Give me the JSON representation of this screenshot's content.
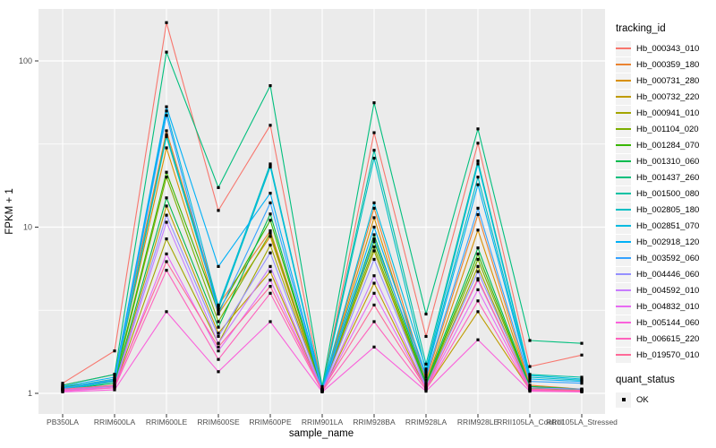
{
  "chart_data": {
    "type": "line",
    "title": "",
    "x_axis": {
      "label": "sample_name",
      "categories": [
        "PB350LA",
        "RRIM600LA",
        "RRIM600LE",
        "RRIM600SE",
        "RRIM600PE",
        "RRIM901LA",
        "RRIM928BA",
        "RRIM928LA",
        "RRIM928LE",
        "RRII105LA_Control",
        "RRII105LA_Stressed"
      ]
    },
    "y_axis": {
      "label": "FPKM + 1",
      "scale": "log10",
      "ticks": [
        "1",
        "10",
        "100"
      ],
      "tick_values": [
        1,
        10,
        100
      ],
      "minor_tick_values": [
        3.1623,
        31.623
      ],
      "range": [
        0.75,
        205
      ]
    },
    "grid": true,
    "panel_background": "#ebebeb",
    "gridline_color": "#ffffff",
    "point_color": "#000000",
    "legend": {
      "title": "tracking_id",
      "position": "right",
      "key_background": "#f2f2f2"
    },
    "quant_status": {
      "title": "quant_status",
      "items": [
        {
          "label": "OK",
          "color": "#000000",
          "shape": "square"
        }
      ]
    },
    "series": [
      {
        "name": "Hb_000343_010",
        "color": "#F8766D",
        "values": [
          1.15,
          1.8,
          170,
          12.6,
          41,
          1.06,
          37,
          2.2,
          32,
          1.45,
          1.7
        ]
      },
      {
        "name": "Hb_000359_180",
        "color": "#EA8331",
        "values": [
          1.12,
          1.3,
          38,
          3.4,
          9.5,
          1.05,
          13.0,
          1.2,
          11.9,
          1.12,
          1.06
        ]
      },
      {
        "name": "Hb_000731_280",
        "color": "#D89000",
        "values": [
          1.08,
          1.22,
          30,
          3.0,
          8.8,
          1.04,
          11.4,
          1.15,
          9.6,
          1.1,
          1.05
        ]
      },
      {
        "name": "Hb_000732_220",
        "color": "#C09B00",
        "values": [
          1.04,
          1.12,
          13.4,
          2.3,
          5.4,
          1.03,
          4.6,
          1.06,
          3.1,
          1.05,
          1.03
        ]
      },
      {
        "name": "Hb_000941_010",
        "color": "#A3A500",
        "values": [
          1.06,
          1.1,
          8.5,
          2.0,
          7.8,
          1.03,
          7.2,
          1.08,
          5.8,
          1.05,
          1.03
        ]
      },
      {
        "name": "Hb_001104_020",
        "color": "#7CAE00",
        "values": [
          1.1,
          1.18,
          20.0,
          2.7,
          9.2,
          1.05,
          7.6,
          1.1,
          6.4,
          1.07,
          1.04
        ]
      },
      {
        "name": "Hb_001284_070",
        "color": "#39B600",
        "values": [
          1.08,
          1.2,
          21.4,
          3.1,
          11.0,
          1.05,
          8.2,
          1.12,
          6.9,
          1.08,
          1.05
        ]
      },
      {
        "name": "Hb_001310_060",
        "color": "#00BB4E",
        "values": [
          1.05,
          1.15,
          15.0,
          2.5,
          12.0,
          1.04,
          9.0,
          1.15,
          7.5,
          1.1,
          1.06
        ]
      },
      {
        "name": "Hb_001437_260",
        "color": "#00BF7D",
        "values": [
          1.12,
          1.3,
          113,
          17.3,
          71,
          1.1,
          56,
          3.0,
          39,
          2.08,
          2.0
        ]
      },
      {
        "name": "Hb_001500_080",
        "color": "#00C1A3",
        "values": [
          1.06,
          1.2,
          36,
          3.3,
          24,
          1.06,
          29,
          1.5,
          25,
          1.3,
          1.25
        ]
      },
      {
        "name": "Hb_002805_180",
        "color": "#00BFC4",
        "values": [
          1.05,
          1.18,
          35,
          3.2,
          23,
          1.05,
          26,
          1.35,
          20,
          1.25,
          1.2
        ]
      },
      {
        "name": "Hb_002851_070",
        "color": "#00BAE0",
        "values": [
          1.08,
          1.22,
          50,
          3.35,
          23.5,
          1.06,
          14,
          1.4,
          24,
          1.28,
          1.22
        ]
      },
      {
        "name": "Hb_002918_120",
        "color": "#00B0F6",
        "values": [
          1.1,
          1.25,
          53,
          5.8,
          16,
          1.06,
          10,
          1.3,
          18,
          1.22,
          1.18
        ]
      },
      {
        "name": "Hb_003592_060",
        "color": "#35A2FF",
        "values": [
          1.07,
          1.2,
          47,
          3.0,
          14,
          1.05,
          8.5,
          1.25,
          13,
          1.18,
          1.15
        ]
      },
      {
        "name": "Hb_004446_060",
        "color": "#9590FF",
        "values": [
          1.05,
          1.12,
          11.8,
          2.2,
          7.0,
          1.04,
          6.4,
          1.1,
          5.4,
          1.08,
          1.06
        ]
      },
      {
        "name": "Hb_004592_010",
        "color": "#C77CFF",
        "values": [
          1.04,
          1.1,
          10.7,
          2.0,
          5.8,
          1.03,
          5.1,
          1.08,
          4.8,
          1.06,
          1.04
        ]
      },
      {
        "name": "Hb_004832_010",
        "color": "#E76BF3",
        "values": [
          1.03,
          1.08,
          6.9,
          1.8,
          4.8,
          1.03,
          4.0,
          1.06,
          4.2,
          1.05,
          1.03
        ]
      },
      {
        "name": "Hb_005144_060",
        "color": "#FA62DB",
        "values": [
          1.02,
          1.05,
          3.1,
          1.35,
          2.7,
          1.02,
          1.9,
          1.03,
          2.1,
          1.03,
          1.02
        ]
      },
      {
        "name": "Hb_006615_220",
        "color": "#FF62BC",
        "values": [
          1.04,
          1.08,
          5.5,
          1.6,
          4.0,
          1.03,
          2.7,
          1.05,
          3.6,
          1.04,
          1.03
        ]
      },
      {
        "name": "Hb_019570_010",
        "color": "#FF6A98",
        "values": [
          1.06,
          1.12,
          6.2,
          1.9,
          4.4,
          1.04,
          3.4,
          1.07,
          4.9,
          1.06,
          1.04
        ]
      }
    ]
  }
}
